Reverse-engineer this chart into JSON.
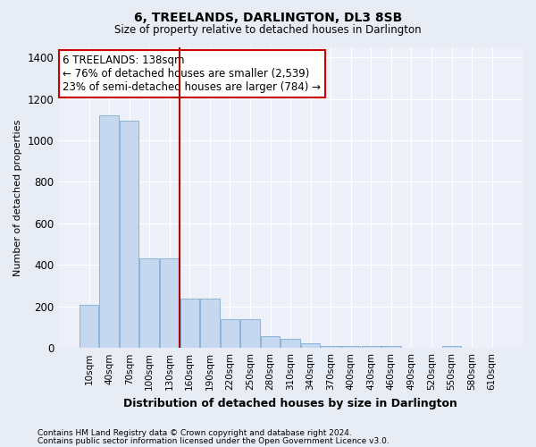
{
  "title": "6, TREELANDS, DARLINGTON, DL3 8SB",
  "subtitle": "Size of property relative to detached houses in Darlington",
  "xlabel": "Distribution of detached houses by size in Darlington",
  "ylabel": "Number of detached properties",
  "footnote1": "Contains HM Land Registry data © Crown copyright and database right 2024.",
  "footnote2": "Contains public sector information licensed under the Open Government Licence v3.0.",
  "categories": [
    "10sqm",
    "40sqm",
    "70sqm",
    "100sqm",
    "130sqm",
    "160sqm",
    "190sqm",
    "220sqm",
    "250sqm",
    "280sqm",
    "310sqm",
    "340sqm",
    "370sqm",
    "400sqm",
    "430sqm",
    "460sqm",
    "490sqm",
    "520sqm",
    "550sqm",
    "580sqm",
    "610sqm"
  ],
  "values": [
    210,
    1120,
    1095,
    430,
    430,
    240,
    240,
    140,
    140,
    57,
    45,
    22,
    12,
    12,
    12,
    12,
    0,
    0,
    12,
    0,
    0
  ],
  "bar_color": "#c5d8ef",
  "bar_edge_color": "#8ab4d8",
  "bg_color": "#e8edf5",
  "plot_bg_color": "#edf0f8",
  "grid_color": "#ffffff",
  "vline_color": "#aa0000",
  "vline_x": 4.5,
  "annotation_text": "6 TREELANDS: 138sqm\n← 76% of detached houses are smaller (2,539)\n23% of semi-detached houses are larger (784) →",
  "annotation_box_color": "#ffffff",
  "annotation_border_color": "#cc0000",
  "ylim": [
    0,
    1450
  ],
  "yticks": [
    0,
    200,
    400,
    600,
    800,
    1000,
    1200,
    1400
  ]
}
